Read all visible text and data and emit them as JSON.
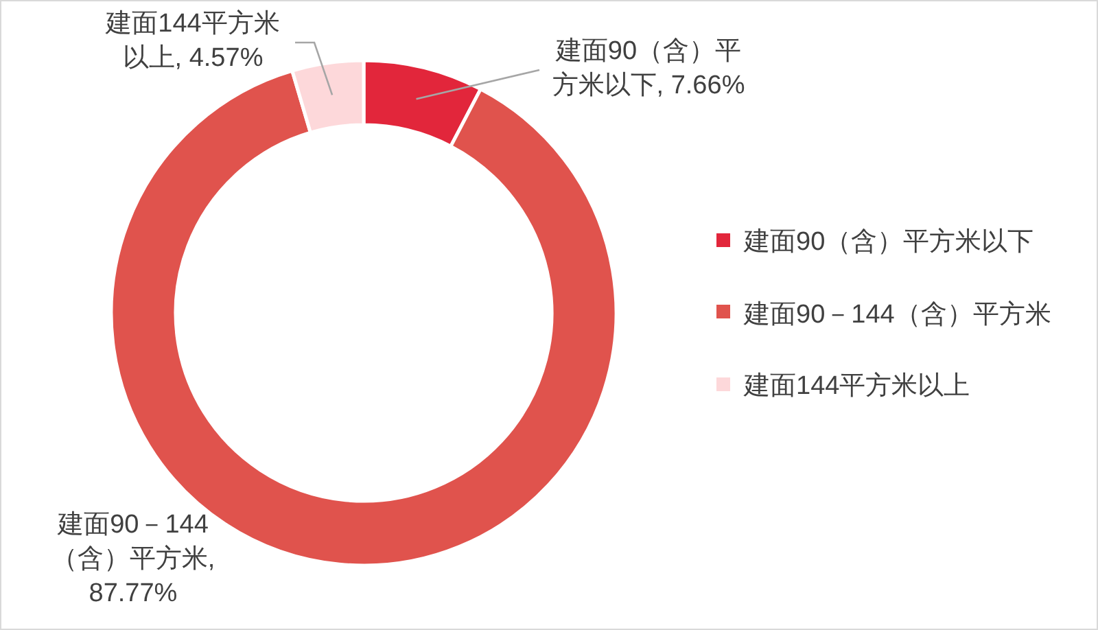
{
  "chart_data": {
    "type": "donut",
    "categories": [
      "建面90（含）平方米以下",
      "建面90－144（含）平方米",
      "建面144平方米以上"
    ],
    "values": [
      7.66,
      87.77,
      4.57
    ],
    "colors": [
      "#e2263b",
      "#e0534d",
      "#fdd8da"
    ],
    "value_labels": [
      "建面90（含）平方米以下, 7.66%",
      "建面90－144（含）平方米, 87.77%",
      "建面144平方米以上, 4.57%"
    ],
    "legend": "right"
  }
}
